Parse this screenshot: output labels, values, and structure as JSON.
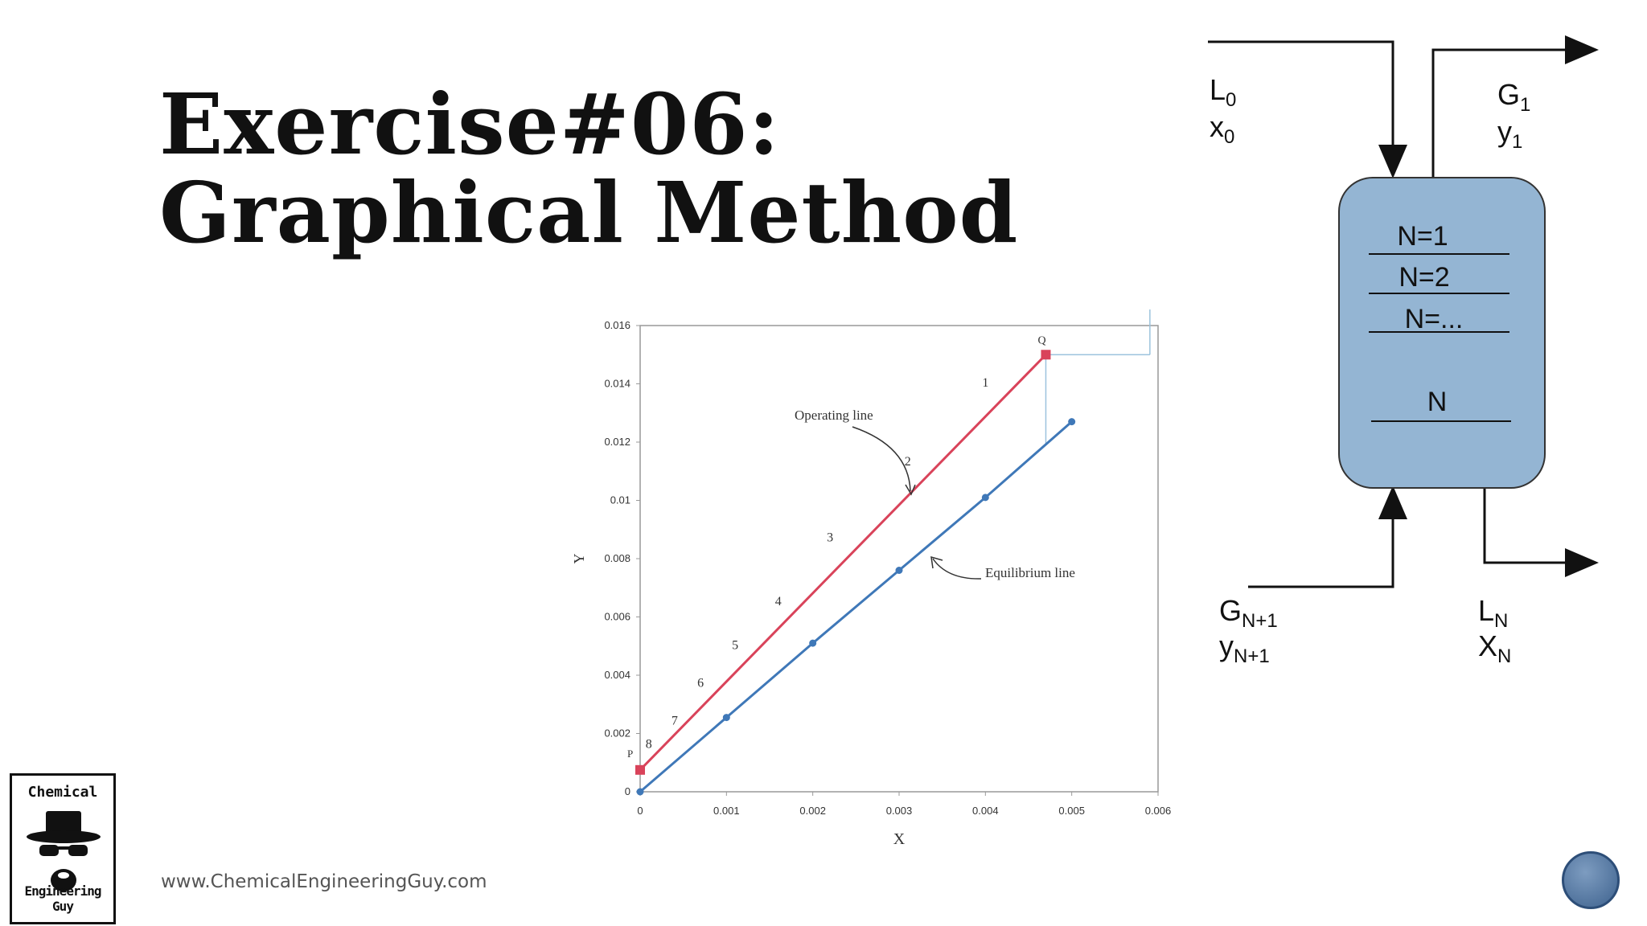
{
  "slide": {
    "title_line1": "Exercise#06:",
    "title_line2": "Graphical Method",
    "website": "www.ChemicalEngineeringGuy.com",
    "logo_top": "Chemical",
    "logo_bottom": "Engineering Guy"
  },
  "chart_data": {
    "type": "line",
    "xlabel": "X",
    "ylabel": "Y",
    "xlim": [
      0,
      0.006
    ],
    "ylim": [
      0,
      0.016
    ],
    "x_ticks": [
      "0",
      "0.001",
      "0.002",
      "0.003",
      "0.004",
      "0.005",
      "0.006"
    ],
    "y_ticks": [
      "0",
      "0.002",
      "0.004",
      "0.006",
      "0.008",
      "0.01",
      "0.012",
      "0.014",
      "0.016"
    ],
    "grid": false,
    "series": [
      {
        "name": "Operating line",
        "color": "#d9435a",
        "x": [
          0,
          0.0047
        ],
        "y": [
          0.00075,
          0.015
        ]
      },
      {
        "name": "Equilibrium line",
        "color": "#3f78b8",
        "x": [
          0,
          0.001,
          0.002,
          0.003,
          0.004,
          0.005
        ],
        "y": [
          0,
          0.00255,
          0.0051,
          0.0076,
          0.0101,
          0.0127
        ]
      }
    ],
    "endpoint_labels": [
      {
        "text": "P",
        "x": 0,
        "y": 0.00075
      },
      {
        "text": "Q",
        "x": 0.0047,
        "y": 0.015
      }
    ],
    "stages": [
      {
        "label": "1",
        "x": 0.004,
        "y": 0.0139
      },
      {
        "label": "2",
        "x": 0.0031,
        "y": 0.0112
      },
      {
        "label": "3",
        "x": 0.0022,
        "y": 0.0086
      },
      {
        "label": "4",
        "x": 0.0016,
        "y": 0.0064
      },
      {
        "label": "5",
        "x": 0.0011,
        "y": 0.0049
      },
      {
        "label": "6",
        "x": 0.0007,
        "y": 0.0036
      },
      {
        "label": "7",
        "x": 0.0004,
        "y": 0.0023
      },
      {
        "label": "8",
        "x": 0.0001,
        "y": 0.0015
      }
    ],
    "annotations": [
      {
        "text": "Operating line"
      },
      {
        "text": "Equilibrium line"
      }
    ]
  },
  "column": {
    "fill": "#94b5d3",
    "stages": [
      "N=1",
      "N=2",
      "N=...",
      "N"
    ],
    "top_left": {
      "flow": "L",
      "flow_sub": "0",
      "comp": "x",
      "comp_sub": "0"
    },
    "top_right": {
      "flow": "G",
      "flow_sub": "1",
      "comp": "y",
      "comp_sub": "1"
    },
    "bottom_left": {
      "flow": "G",
      "flow_sub": "N+1",
      "comp": "y",
      "comp_sub": "N+1"
    },
    "bottom_right": {
      "flow": "L",
      "flow_sub": "N",
      "comp": "X",
      "comp_sub": "N"
    }
  }
}
